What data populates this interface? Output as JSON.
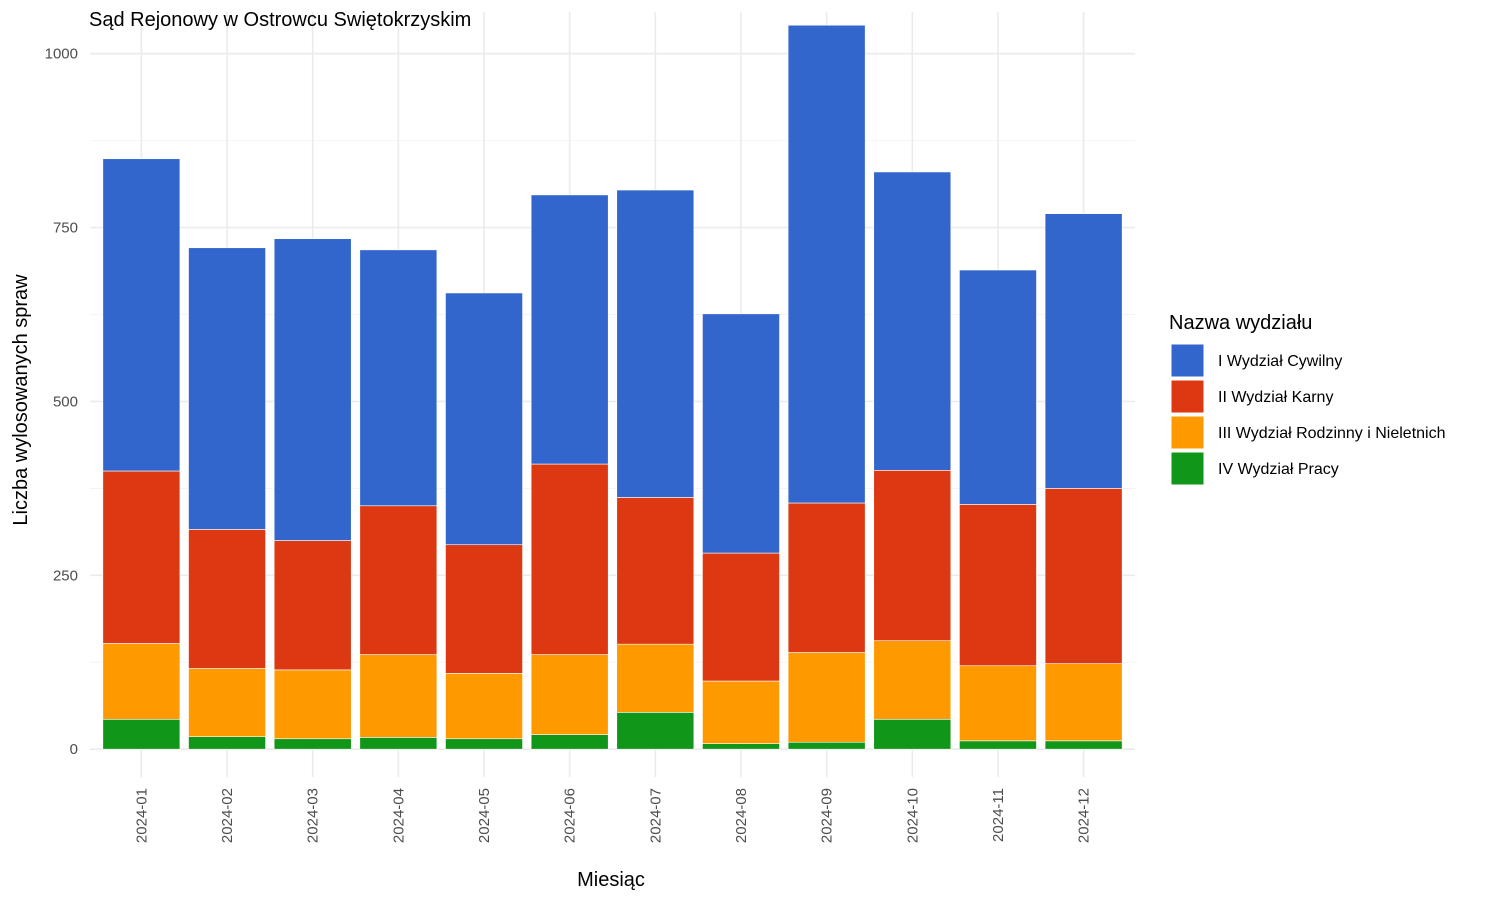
{
  "chart_data": {
    "type": "bar",
    "stacked": true,
    "title": "Sąd Rejonowy w Ostrowcu Swiętokrzyskim",
    "xlabel": "Miesiąc",
    "ylabel": "Liczba wylosowanych spraw",
    "ylim": [
      -40,
      1060
    ],
    "yticks": [
      0,
      250,
      500,
      750,
      1000
    ],
    "ytick_labels": [
      "0",
      "250",
      "500",
      "750",
      "1000"
    ],
    "grid": true,
    "legend_position": "right",
    "legend_title": "Nazwa wydziału",
    "categories": [
      "2024-01",
      "2024-02",
      "2024-03",
      "2024-04",
      "2024-05",
      "2024-06",
      "2024-07",
      "2024-08",
      "2024-09",
      "2024-10",
      "2024-11",
      "2024-12"
    ],
    "series": [
      {
        "name": "IV Wydział Pracy",
        "color": "#109618",
        "values": [
          43,
          18,
          15,
          17,
          15,
          21,
          53,
          8,
          10,
          43,
          12,
          12
        ]
      },
      {
        "name": "III Wydział Rodzinny i Nieletnich",
        "color": "#ff9900",
        "values": [
          109,
          98,
          99,
          119,
          94,
          115,
          98,
          90,
          129,
          113,
          108,
          111
        ]
      },
      {
        "name": "II Wydział Karny",
        "color": "#dc3912",
        "values": [
          248,
          200,
          186,
          214,
          185,
          274,
          211,
          184,
          215,
          245,
          232,
          252
        ]
      },
      {
        "name": "I Wydział Cywilny",
        "color": "#3366cc",
        "values": [
          449,
          405,
          434,
          368,
          362,
          387,
          442,
          344,
          687,
          429,
          337,
          395
        ]
      }
    ],
    "legend_order": [
      "I Wydział Cywilny",
      "II Wydział Karny",
      "III Wydział Rodzinny i Nieletnich",
      "IV Wydział Pracy"
    ]
  }
}
